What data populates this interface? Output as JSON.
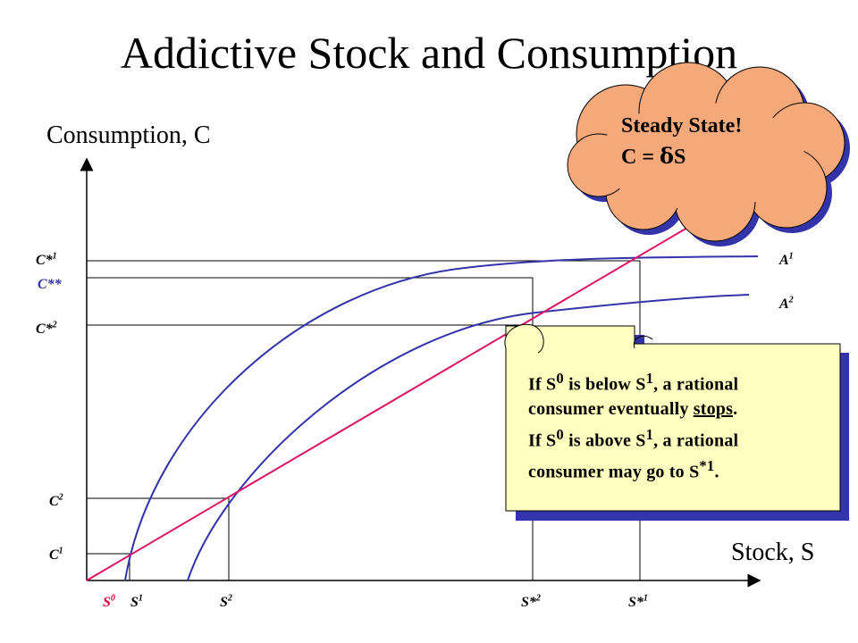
{
  "title": "Addictive Stock and Consumption",
  "y_axis_label": "Consumption, C",
  "x_axis_label": "Stock, S",
  "curve_labels": {
    "a1": "A1",
    "a2": "A2"
  },
  "y_ticks": {
    "c_star_1": "C*1",
    "c_star_star": "C**",
    "c_star_2": "C*2",
    "c2": "C2",
    "c1": "C1"
  },
  "x_ticks": {
    "s0": "S0",
    "s1": "S1",
    "s2": "S2",
    "s_star_2": "S*2",
    "s_star_1": "S*1"
  },
  "cloud": {
    "line1": "Steady State!",
    "line2_prefix": "C = ",
    "line2_delta": "δ",
    "line2_suffix": "S"
  },
  "note": {
    "l1_a": "If S",
    "l1_b": "0",
    "l1_c": " is below S",
    "l1_d": "1",
    "l1_e": ", a rational",
    "l2_a": "consumer eventually ",
    "l2_b": "stops",
    "l3_a": "If S",
    "l3_b": "0",
    "l3_c": " is above S",
    "l3_d": "1",
    "l3_e": ", a rational",
    "l4_a": "consumer may go to S",
    "l4_b": "*1",
    "l4_c": "."
  },
  "colors": {
    "curve": "#3333aa",
    "line": "#dd1166",
    "cloud_fill": "#f5a87a",
    "note_fill": "#ffffc0",
    "shadow": "#3333aa"
  }
}
